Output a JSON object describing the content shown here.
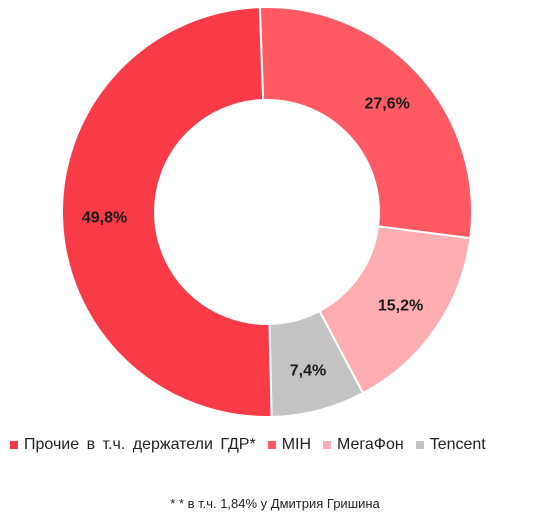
{
  "chart_data": {
    "type": "pie",
    "donut": true,
    "title": "",
    "categories": [
      "Прочие в т.ч. держатели ГДР*",
      "MIH",
      "МегаФон",
      "Tencent"
    ],
    "series": [
      {
        "values": [
          49.8,
          27.6,
          15.2,
          7.4
        ]
      }
    ],
    "value_labels": [
      "49,8%",
      "27,6%",
      "15,2%",
      "7,4%"
    ],
    "colors": [
      "#f93a47",
      "#ff5a63",
      "#ffadb1",
      "#c3c3c3"
    ],
    "legend_position": "bottom"
  },
  "footnote": {
    "marker": "* *",
    "text": "в т.ч. 1,84% у Дмитрия Гришина"
  }
}
